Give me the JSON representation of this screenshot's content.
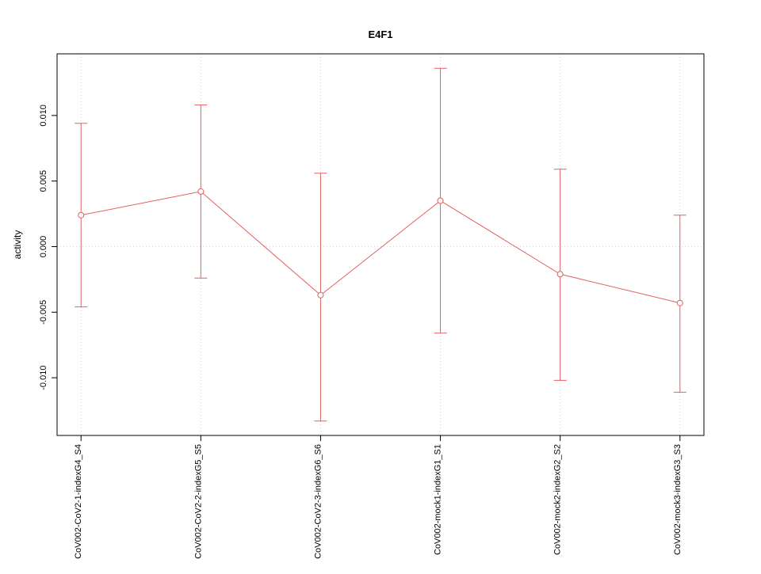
{
  "page": {
    "background": "#ffffff"
  },
  "chart_data": {
    "type": "line",
    "title": "E4F1",
    "xlabel": "",
    "ylabel": "activity",
    "legend_position": "none",
    "grid": {
      "vertical_dotted_at_each_category": true,
      "horizontal_dotted_at_zero": true
    },
    "categories": [
      "CoV002-CoV2-1-indexG4_S4",
      "CoV002-CoV2-2-indexG5_S5",
      "CoV002-CoV2-3-indexG6_S6",
      "CoV002-mock1-indexG1_S1",
      "CoV002-mock2-indexG2_S2",
      "CoV002-mock3-indexG3_S3"
    ],
    "series": [
      {
        "name": "activity",
        "values": [
          0.0024,
          0.0042,
          -0.0037,
          0.0035,
          -0.0021,
          -0.0043
        ],
        "error_upper": [
          0.0094,
          0.0108,
          0.0056,
          0.0136,
          0.0059,
          0.0024
        ],
        "error_lower": [
          -0.0046,
          -0.0024,
          -0.0133,
          -0.0066,
          -0.0102,
          -0.0111
        ]
      }
    ],
    "yticks": [
      {
        "v": -0.01,
        "label": "-0.010"
      },
      {
        "v": -0.005,
        "label": "-0.005"
      },
      {
        "v": 0.0,
        "label": "0.000"
      },
      {
        "v": 0.005,
        "label": "0.005"
      },
      {
        "v": 0.01,
        "label": "0.010"
      }
    ],
    "ylim": [
      -0.0144,
      0.0147
    ],
    "x_domain_padding": 0.2,
    "colors": {
      "series": "#e26060",
      "grid": "#d6d6d6",
      "axis": "#000000",
      "point_fill": "#ffffff"
    }
  }
}
